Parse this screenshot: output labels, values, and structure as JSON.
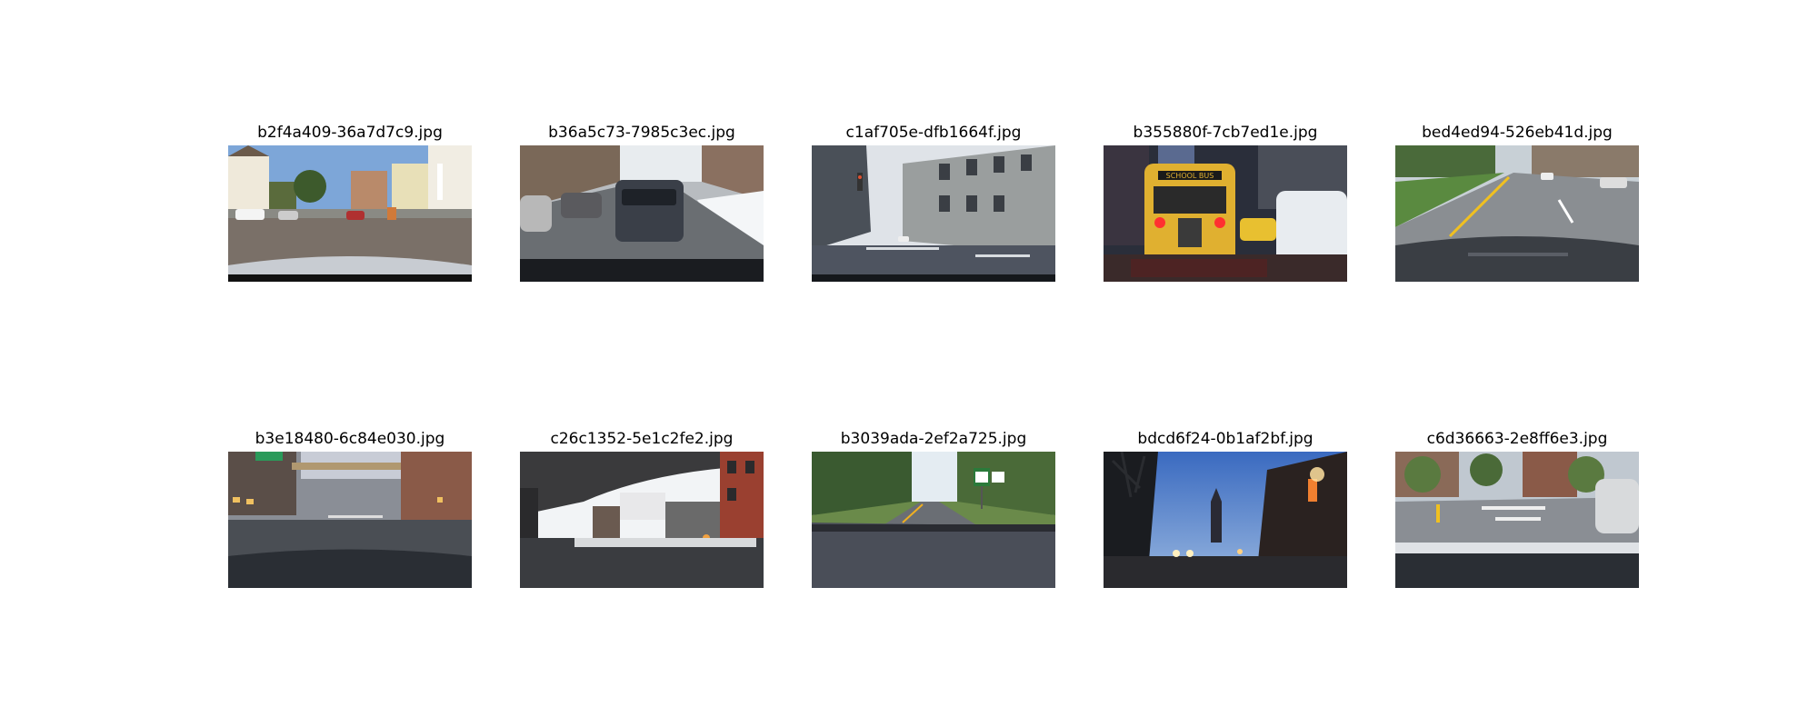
{
  "figure": {
    "images": [
      {
        "filename": "b2f4a409-36a7d7c9.jpg"
      },
      {
        "filename": "b36a5c73-7985c3ec.jpg"
      },
      {
        "filename": "c1af705e-dfb1664f.jpg"
      },
      {
        "filename": "b355880f-7cb7ed1e.jpg"
      },
      {
        "filename": "bed4ed94-526eb41d.jpg"
      },
      {
        "filename": "b3e18480-6c84e030.jpg"
      },
      {
        "filename": "c26c1352-5e1c2fe2.jpg"
      },
      {
        "filename": "b3039ada-2ef2a725.jpg"
      },
      {
        "filename": "bdcd6f24-0b1af2bf.jpg"
      },
      {
        "filename": "c6d36663-2e8ff6e3.jpg"
      }
    ]
  }
}
